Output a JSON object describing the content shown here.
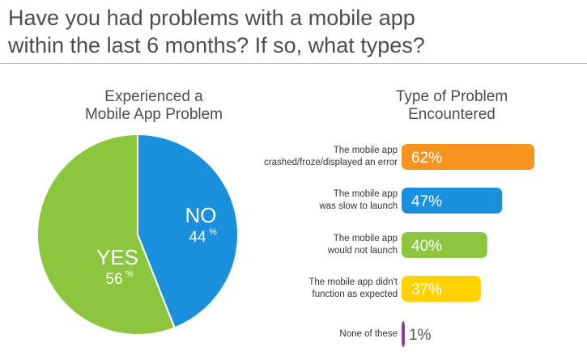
{
  "title_line1": "Have you had problems with a mobile app",
  "title_line2": "within the last 6 months? If so, what types?",
  "chart_data": [
    {
      "type": "pie",
      "title_line1": "Experienced a",
      "title_line2": "Mobile App Problem",
      "slices": [
        {
          "label": "NO",
          "value": 44,
          "value_text": "44",
          "unit": "%",
          "color": "#1a8fdb"
        },
        {
          "label": "YES",
          "value": 56,
          "value_text": "56",
          "unit": "%",
          "color": "#8cc63f"
        }
      ]
    },
    {
      "type": "bar",
      "orientation": "horizontal",
      "title_line1": "Type of Problem",
      "title_line2": "Encountered",
      "xlim": [
        0,
        62
      ],
      "bars": [
        {
          "label_line1": "The mobile app",
          "label_line2": "crashed/froze/displayed an error",
          "value": 62,
          "value_text": "62%",
          "color": "#f7941d"
        },
        {
          "label_line1": "The mobile app",
          "label_line2": "was slow to launch",
          "value": 47,
          "value_text": "47%",
          "color": "#1a8fdb"
        },
        {
          "label_line1": "The mobile app",
          "label_line2": "would not launch",
          "value": 40,
          "value_text": "40%",
          "color": "#8cc63f"
        },
        {
          "label_line1": "The mobile app didn't",
          "label_line2": "function as expected",
          "value": 37,
          "value_text": "37%",
          "color": "#ffd200"
        },
        {
          "label_line1": "",
          "label_line2": "None of these",
          "value": 1,
          "value_text": "1%",
          "color": "#8e3b96"
        }
      ]
    }
  ]
}
